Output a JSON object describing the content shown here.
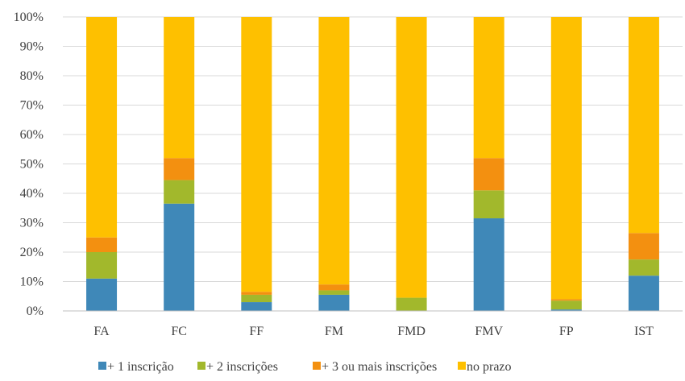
{
  "chart_data": {
    "type": "bar",
    "stacked": true,
    "percent": true,
    "title": "",
    "xlabel": "",
    "ylabel": "",
    "ylim": [
      0,
      100
    ],
    "yticks": [
      "0%",
      "10%",
      "20%",
      "30%",
      "40%",
      "50%",
      "60%",
      "70%",
      "80%",
      "90%",
      "100%"
    ],
    "grid": true,
    "legend_position": "bottom",
    "categories": [
      "FA",
      "FC",
      "FF",
      "FM",
      "FMD",
      "FMV",
      "FP",
      "IST"
    ],
    "series": [
      {
        "name": "+ 1 inscrição",
        "color": "#3f88b8",
        "values": [
          11,
          36.5,
          3,
          5.5,
          0,
          31.5,
          0.5,
          12
        ]
      },
      {
        "name": "+ 2 inscrições",
        "color": "#a2b82c",
        "values": [
          9,
          8,
          2.5,
          1.5,
          4.5,
          9.5,
          3,
          5.5
        ]
      },
      {
        "name": "+ 3 ou mais inscrições",
        "color": "#f39010",
        "values": [
          5,
          7.5,
          1,
          2,
          0,
          11,
          0.5,
          9
        ]
      },
      {
        "name": "no prazo",
        "color": "#fec000",
        "values": [
          75,
          48,
          93.5,
          91,
          95.5,
          48,
          96,
          73.5
        ]
      }
    ]
  }
}
